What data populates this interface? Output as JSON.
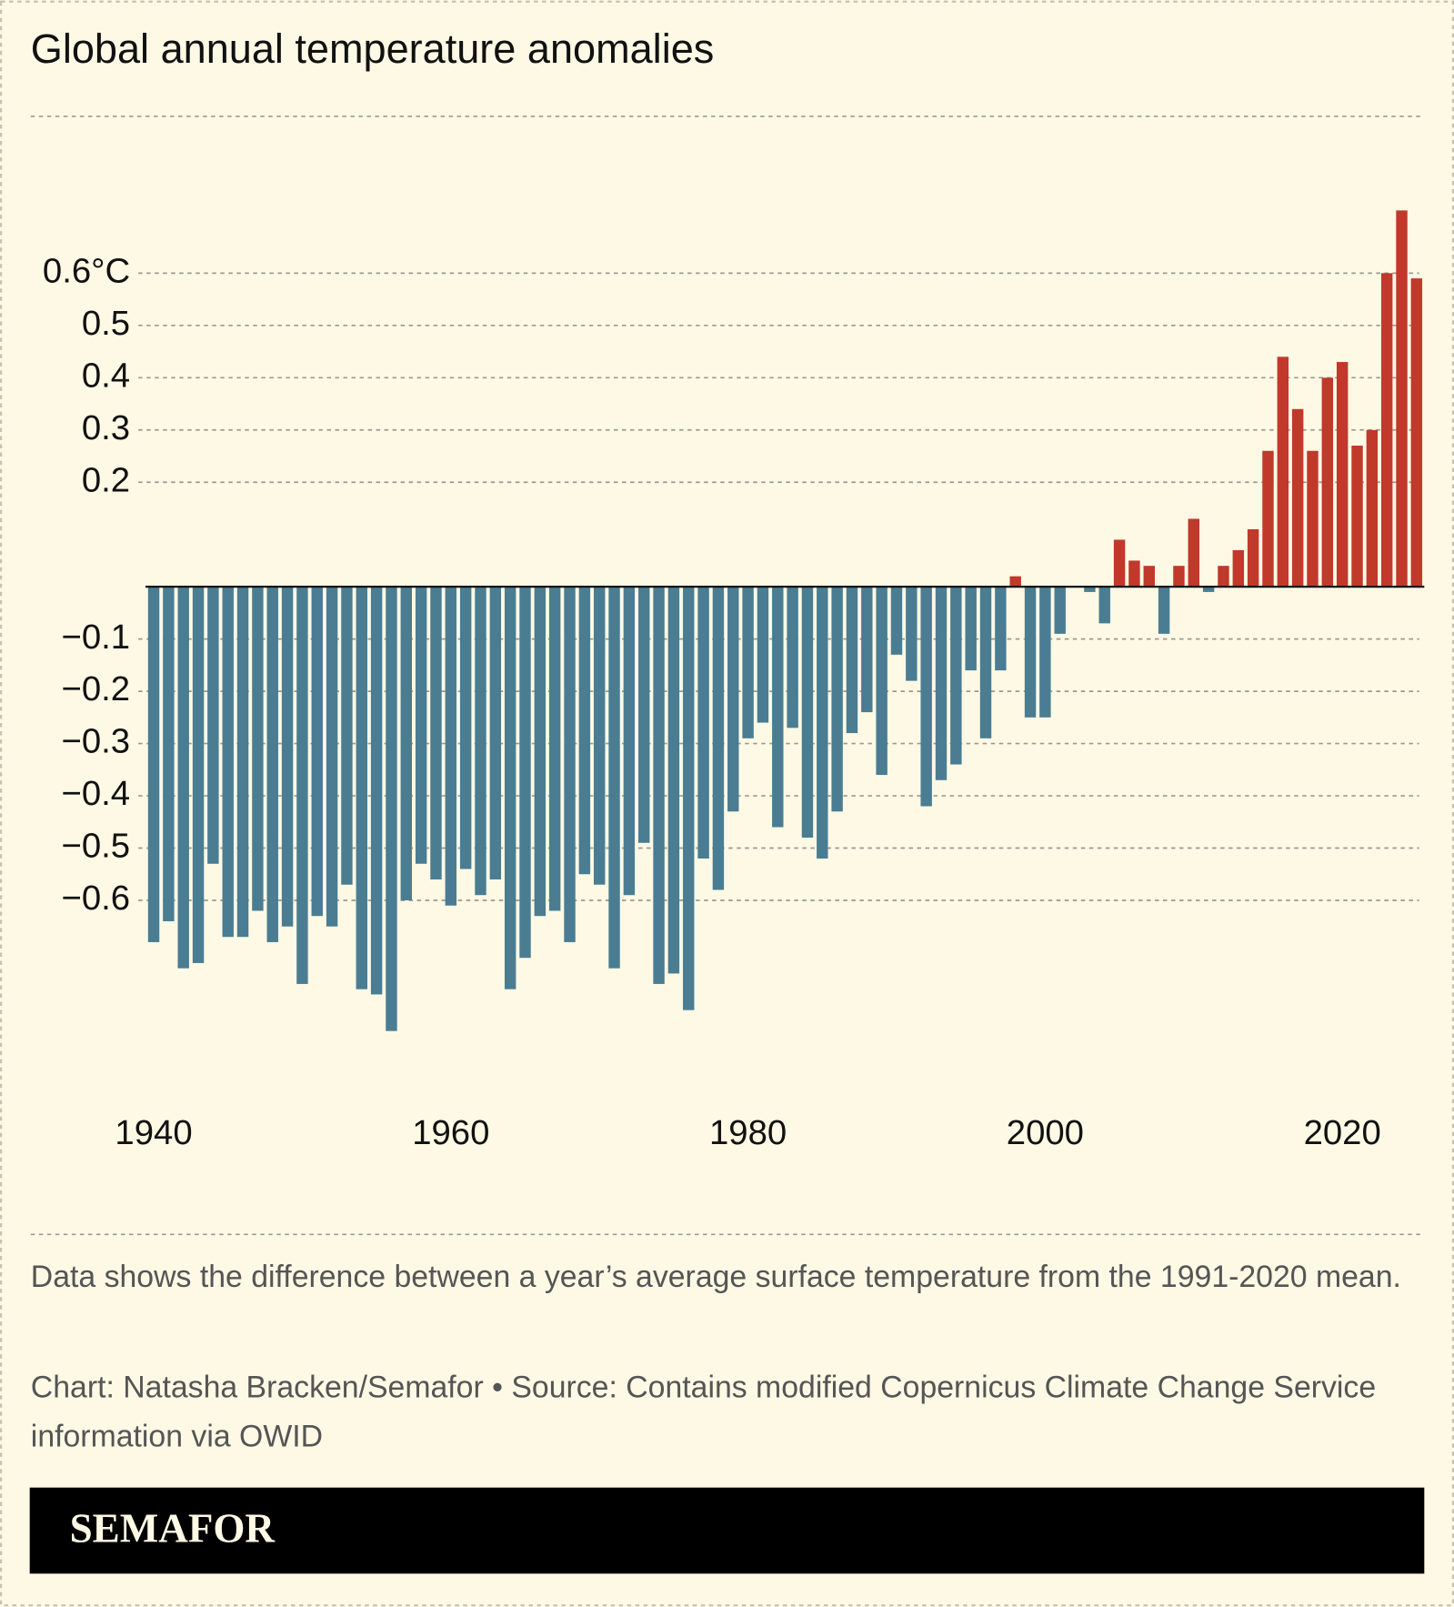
{
  "chart_data": {
    "type": "bar",
    "title": "Global annual temperature anomalies",
    "note": "Data shows the difference between a year’s average surface temperature from the 1991-2020 mean.",
    "source": "Chart: Natasha Bracken/Semafor • Source: Contains modified Copernicus Climate Change Service information via OWID",
    "brand": "SEMAFOR",
    "x": [
      1940,
      1941,
      1942,
      1943,
      1944,
      1945,
      1946,
      1947,
      1948,
      1949,
      1950,
      1951,
      1952,
      1953,
      1954,
      1955,
      1956,
      1957,
      1958,
      1959,
      1960,
      1961,
      1962,
      1963,
      1964,
      1965,
      1966,
      1967,
      1968,
      1969,
      1970,
      1971,
      1972,
      1973,
      1974,
      1975,
      1976,
      1977,
      1978,
      1979,
      1980,
      1981,
      1982,
      1983,
      1984,
      1985,
      1986,
      1987,
      1988,
      1989,
      1990,
      1991,
      1992,
      1993,
      1994,
      1995,
      1996,
      1997,
      1998,
      1999,
      2000,
      2001,
      2002,
      2003,
      2004,
      2005,
      2006,
      2007,
      2008,
      2009,
      2010,
      2011,
      2012,
      2013,
      2014,
      2015,
      2016,
      2017,
      2018,
      2019,
      2020,
      2021,
      2022,
      2023,
      2024,
      2025
    ],
    "values": [
      -0.68,
      -0.64,
      -0.73,
      -0.72,
      -0.53,
      -0.67,
      -0.67,
      -0.62,
      -0.68,
      -0.65,
      -0.76,
      -0.63,
      -0.65,
      -0.57,
      -0.77,
      -0.78,
      -0.85,
      -0.6,
      -0.53,
      -0.56,
      -0.61,
      -0.54,
      -0.59,
      -0.56,
      -0.77,
      -0.71,
      -0.63,
      -0.62,
      -0.68,
      -0.55,
      -0.57,
      -0.73,
      -0.59,
      -0.49,
      -0.76,
      -0.74,
      -0.81,
      -0.52,
      -0.58,
      -0.43,
      -0.29,
      -0.26,
      -0.46,
      -0.27,
      -0.48,
      -0.52,
      -0.43,
      -0.28,
      -0.24,
      -0.36,
      -0.13,
      -0.18,
      -0.42,
      -0.37,
      -0.34,
      -0.16,
      -0.29,
      -0.16,
      0.02,
      -0.25,
      -0.25,
      -0.09,
      0.0,
      -0.01,
      -0.07,
      0.09,
      0.05,
      0.04,
      -0.09,
      0.04,
      0.13,
      -0.01,
      0.04,
      0.07,
      0.11,
      0.26,
      0.44,
      0.34,
      0.26,
      0.4,
      0.43,
      0.27,
      0.3,
      0.6,
      0.72,
      0.59
    ],
    "positive_color": "#c0392b",
    "negative_color": "#4a7d92",
    "xlim": [
      1939.5,
      2025.5
    ],
    "xticks": [
      1940,
      1960,
      1980,
      2000,
      2020
    ],
    "ylim": [
      -0.9,
      0.8
    ],
    "yticks": [
      {
        "value": -0.6,
        "label": "−0.6"
      },
      {
        "value": -0.5,
        "label": "−0.5"
      },
      {
        "value": -0.4,
        "label": "−0.4"
      },
      {
        "value": -0.3,
        "label": "−0.3"
      },
      {
        "value": -0.2,
        "label": "−0.2"
      },
      {
        "value": -0.1,
        "label": "−0.1"
      },
      0.2,
      0.3,
      0.4,
      0.5,
      {
        "value": 0.6,
        "label": "0.6°C"
      }
    ],
    "grid": true
  }
}
